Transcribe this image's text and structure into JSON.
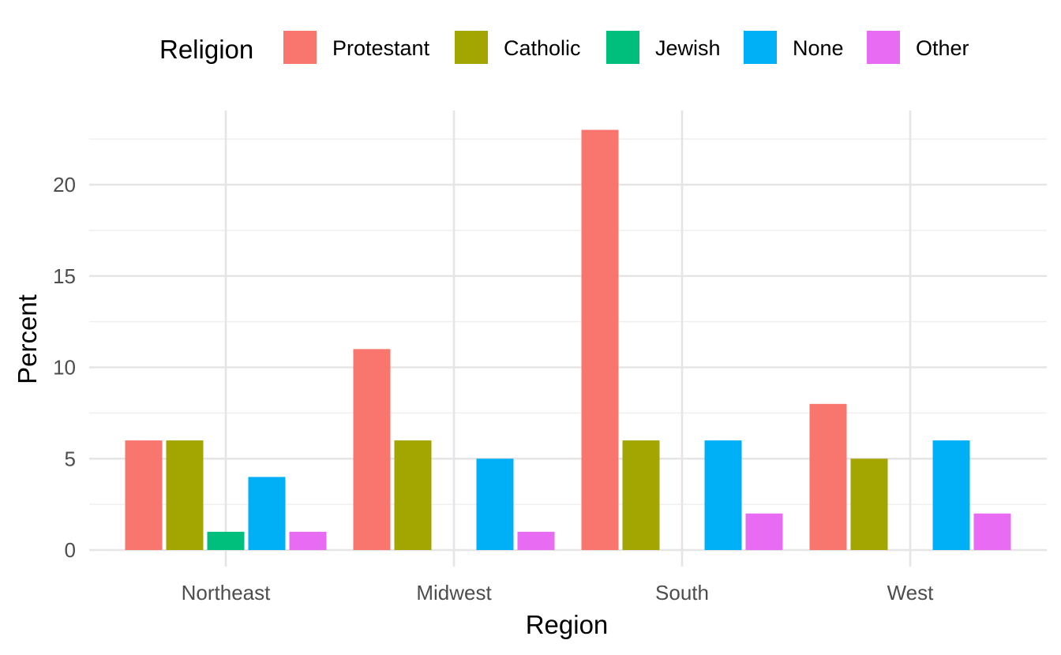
{
  "colors": {
    "Protestant": "#F8766D",
    "Catholic": "#A3A500",
    "Jewish": "#00BF7D",
    "None": "#00B0F6",
    "Other": "#E76BF3"
  },
  "legend": {
    "title": "Religion",
    "items": [
      "Protestant",
      "Catholic",
      "Jewish",
      "None",
      "Other"
    ]
  },
  "chart_data": {
    "type": "bar",
    "title": "",
    "xlabel": "Region",
    "ylabel": "Percent",
    "categories": [
      "Northeast",
      "Midwest",
      "South",
      "West"
    ],
    "series": [
      {
        "name": "Protestant",
        "values": [
          6,
          11,
          23,
          8
        ]
      },
      {
        "name": "Catholic",
        "values": [
          6,
          6,
          6,
          5
        ]
      },
      {
        "name": "Jewish",
        "values": [
          1,
          0,
          0,
          0
        ]
      },
      {
        "name": "None",
        "values": [
          4,
          5,
          6,
          6
        ]
      },
      {
        "name": "Other",
        "values": [
          1,
          1,
          2,
          2
        ]
      }
    ],
    "ylim": [
      0,
      24
    ],
    "yticks": [
      "0",
      "5",
      "10",
      "15",
      "20"
    ],
    "grid": true,
    "legend_position": "top"
  }
}
